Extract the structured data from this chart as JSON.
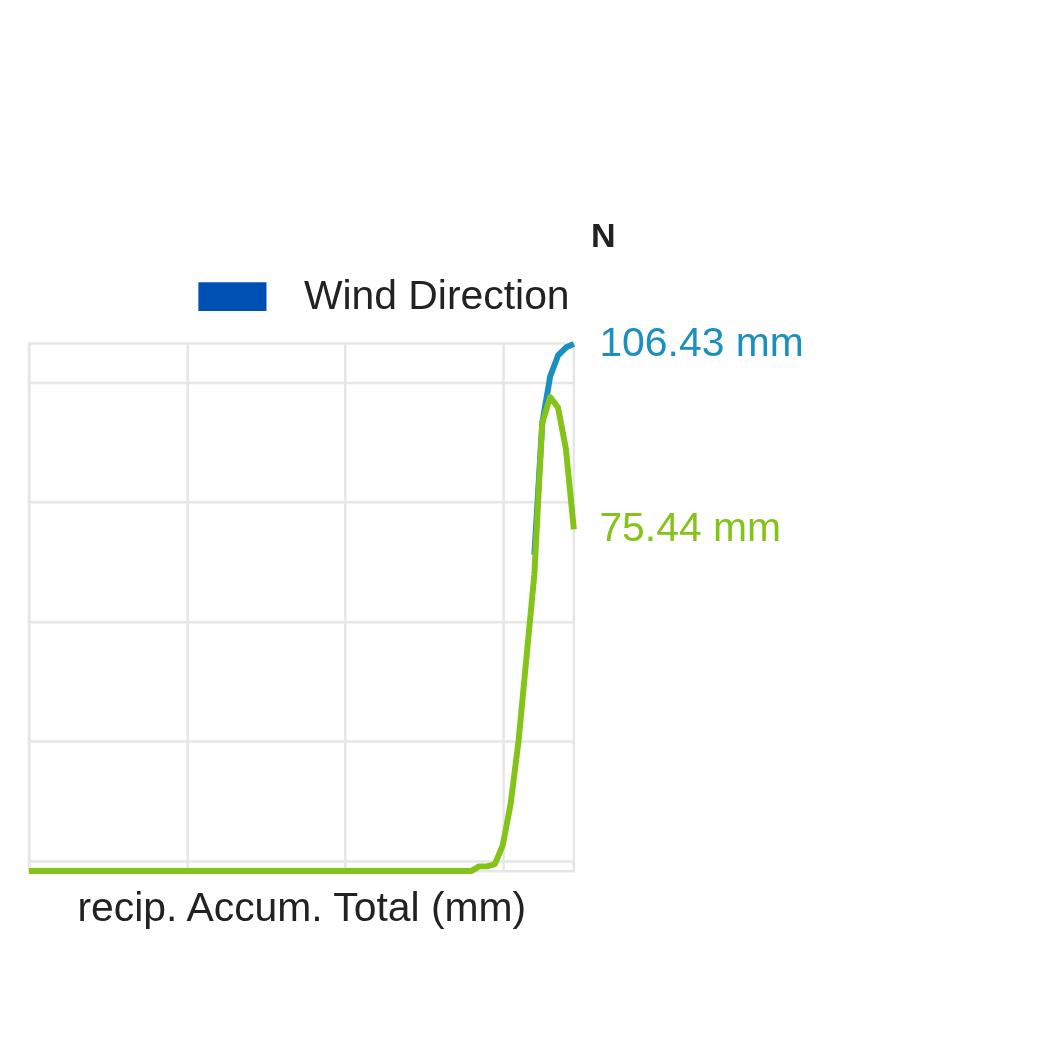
{
  "chart_data": {
    "type": "line",
    "xlabel": "recip. Accum. Total (mm)",
    "annotations": [
      "N",
      "Wind Direction"
    ],
    "grid": true,
    "marker": "none",
    "line_style": "solid",
    "ylim": [
      18.3,
      106.5
    ],
    "categories": [
      null,
      null,
      null,
      null,
      null,
      null,
      null,
      null,
      null,
      null,
      null,
      null,
      null,
      null,
      null,
      null,
      null,
      null,
      null,
      null,
      null,
      null,
      null,
      null,
      null,
      null,
      null,
      null,
      null,
      null,
      null,
      null,
      null,
      null,
      null,
      null,
      null,
      null,
      null,
      null,
      null,
      null,
      null,
      null,
      null,
      null,
      null,
      null,
      null,
      null,
      null,
      null,
      null,
      null,
      null,
      null,
      null,
      null,
      null,
      null,
      null,
      null,
      null,
      null,
      null,
      null,
      null,
      null,
      null,
      null
    ],
    "series": [
      {
        "color": "#1a8fc0",
        "values": [
          null,
          null,
          null,
          null,
          null,
          null,
          null,
          null,
          null,
          null,
          null,
          null,
          null,
          null,
          null,
          null,
          null,
          null,
          null,
          null,
          null,
          null,
          null,
          null,
          null,
          null,
          null,
          null,
          null,
          null,
          null,
          null,
          null,
          null,
          null,
          null,
          null,
          null,
          null,
          null,
          null,
          null,
          null,
          null,
          null,
          null,
          null,
          null,
          null,
          null,
          null,
          null,
          null,
          null,
          null,
          null,
          null,
          null,
          null,
          null,
          null,
          null,
          null,
          null,
          71.2,
          93.23,
          100.98,
          104.5,
          105.82,
          106.43
        ],
        "value_labels": [
          null,
          null,
          null,
          null,
          null,
          null,
          null,
          null,
          null,
          null,
          null,
          null,
          null,
          null,
          null,
          null,
          null,
          null,
          null,
          null,
          null,
          null,
          null,
          null,
          null,
          null,
          null,
          null,
          null,
          null,
          null,
          null,
          null,
          null,
          null,
          null,
          null,
          null,
          null,
          null,
          null,
          null,
          null,
          null,
          null,
          null,
          null,
          null,
          null,
          null,
          null,
          null,
          null,
          null,
          null,
          null,
          null,
          null,
          null,
          null,
          null,
          null,
          null,
          null,
          null,
          null,
          null,
          null,
          null,
          "106.43 mm"
        ]
      },
      {
        "color": "#84c41a",
        "values": [
          18.34,
          18.34,
          18.34,
          18.34,
          18.34,
          18.34,
          18.34,
          18.34,
          18.34,
          18.34,
          18.34,
          18.34,
          18.34,
          18.34,
          18.34,
          18.34,
          18.34,
          18.34,
          18.34,
          18.34,
          18.34,
          18.34,
          18.34,
          18.34,
          18.34,
          18.34,
          18.34,
          18.34,
          18.34,
          18.34,
          18.34,
          18.34,
          18.34,
          18.34,
          18.34,
          18.34,
          18.34,
          18.34,
          18.34,
          18.34,
          18.34,
          18.34,
          18.34,
          18.34,
          18.34,
          18.34,
          18.34,
          18.34,
          18.34,
          18.34,
          18.34,
          18.34,
          18.34,
          18.34,
          18.34,
          18.34,
          18.34,
          19.13,
          19.13,
          19.49,
          22.66,
          29.62,
          40.1,
          54.02,
          67.94,
          93.23,
          97.54,
          95.78,
          88.82,
          75.44
        ],
        "value_labels": [
          null,
          null,
          null,
          null,
          null,
          null,
          null,
          null,
          null,
          null,
          null,
          null,
          null,
          null,
          null,
          null,
          null,
          null,
          null,
          null,
          null,
          null,
          null,
          null,
          null,
          null,
          null,
          null,
          null,
          null,
          null,
          null,
          null,
          null,
          null,
          null,
          null,
          null,
          null,
          null,
          null,
          null,
          null,
          null,
          null,
          null,
          null,
          null,
          null,
          null,
          null,
          null,
          null,
          null,
          null,
          null,
          null,
          null,
          null,
          null,
          null,
          null,
          null,
          null,
          null,
          null,
          null,
          null,
          null,
          "75.44 mm"
        ]
      }
    ]
  }
}
